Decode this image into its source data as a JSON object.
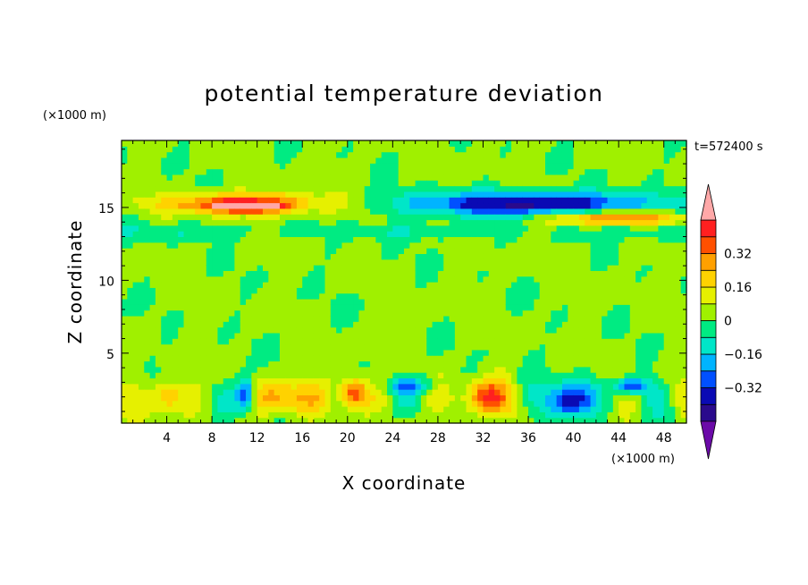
{
  "chart_data": {
    "type": "heatmap",
    "title": "potential temperature deviation",
    "xlabel": "X coordinate",
    "ylabel": "Z coordinate",
    "x_unit": "(×1000 m)",
    "y_unit": "(×1000 m)",
    "time_label": "t=572400 s",
    "xlim": [
      0,
      50
    ],
    "ylim": [
      0.2,
      19.6
    ],
    "x_ticks": [
      4,
      8,
      12,
      16,
      20,
      24,
      28,
      32,
      36,
      40,
      44,
      48
    ],
    "x_tick_labels": [
      "4",
      "8",
      "12",
      "16",
      "20",
      "24",
      "28",
      "32",
      "36",
      "40",
      "44",
      "48"
    ],
    "y_ticks": [
      5,
      10,
      15
    ],
    "y_tick_labels": [
      "5",
      "10",
      "15"
    ],
    "colorbar": {
      "levels": [
        -0.48,
        -0.4,
        -0.32,
        -0.24,
        -0.16,
        -0.08,
        0,
        0.08,
        0.16,
        0.24,
        0.32,
        0.4
      ],
      "tick_labels": [
        "0.32",
        "0.16",
        "0",
        "−0.16",
        "−0.32"
      ],
      "tick_values": [
        0.32,
        0.16,
        0,
        -0.16,
        -0.32
      ],
      "colors": {
        "below": "#6b0aa8",
        "bands": [
          "#2a0a8c",
          "#0a0ab4",
          "#0050ff",
          "#00b4ff",
          "#00e6c8",
          "#00eb82",
          "#a0f000",
          "#e6f000",
          "#ffd200",
          "#ffa000",
          "#ff5000",
          "#ff2020"
        ],
        "above": "#ffa8a8"
      }
    },
    "features": [
      {
        "name": "warm layer left",
        "x_center": 11,
        "z_center": 15.3,
        "x_halfwidth": 7,
        "z_halfwidth": 0.7,
        "value": 0.4
      },
      {
        "name": "warm core left",
        "x_center": 11,
        "z_center": 15.1,
        "x_halfwidth": 2.5,
        "z_halfwidth": 0.3,
        "value": 0.5
      },
      {
        "name": "cold layer right",
        "x_center": 36,
        "z_center": 15.3,
        "x_halfwidth": 11,
        "z_halfwidth": 0.8,
        "value": -0.45
      },
      {
        "name": "warm layer right",
        "x_center": 44,
        "z_center": 14.3,
        "x_halfwidth": 6,
        "z_halfwidth": 0.5,
        "value": 0.36
      },
      {
        "name": "warm cell",
        "x_center": 20.5,
        "z_center": 2.3,
        "x_halfwidth": 1.2,
        "z_halfwidth": 1.0,
        "value": 0.5
      },
      {
        "name": "warm cell",
        "x_center": 32,
        "z_center": 2,
        "x_halfwidth": 2,
        "z_halfwidth": 1.2,
        "value": 0.38
      },
      {
        "name": "warm cell",
        "x_center": 14.5,
        "z_center": 2,
        "x_halfwidth": 2,
        "z_halfwidth": 1.2,
        "value": 0.35
      },
      {
        "name": "warm cell",
        "x_center": 4,
        "z_center": 2,
        "x_halfwidth": 1.5,
        "z_halfwidth": 1.1,
        "value": 0.3
      },
      {
        "name": "cold cell",
        "x_center": 39.5,
        "z_center": 1.8,
        "x_halfwidth": 2,
        "z_halfwidth": 1.2,
        "value": -0.45
      },
      {
        "name": "cold cell",
        "x_center": 11,
        "z_center": 2.2,
        "x_halfwidth": 0.9,
        "z_halfwidth": 1.2,
        "value": -0.36
      },
      {
        "name": "cold cell",
        "x_center": 45,
        "z_center": 2.8,
        "x_halfwidth": 1.5,
        "z_halfwidth": 0.6,
        "value": -0.36
      },
      {
        "name": "cold cell",
        "x_center": 25.5,
        "z_center": 2.8,
        "x_halfwidth": 2.5,
        "z_halfwidth": 0.6,
        "value": -0.2
      }
    ]
  }
}
